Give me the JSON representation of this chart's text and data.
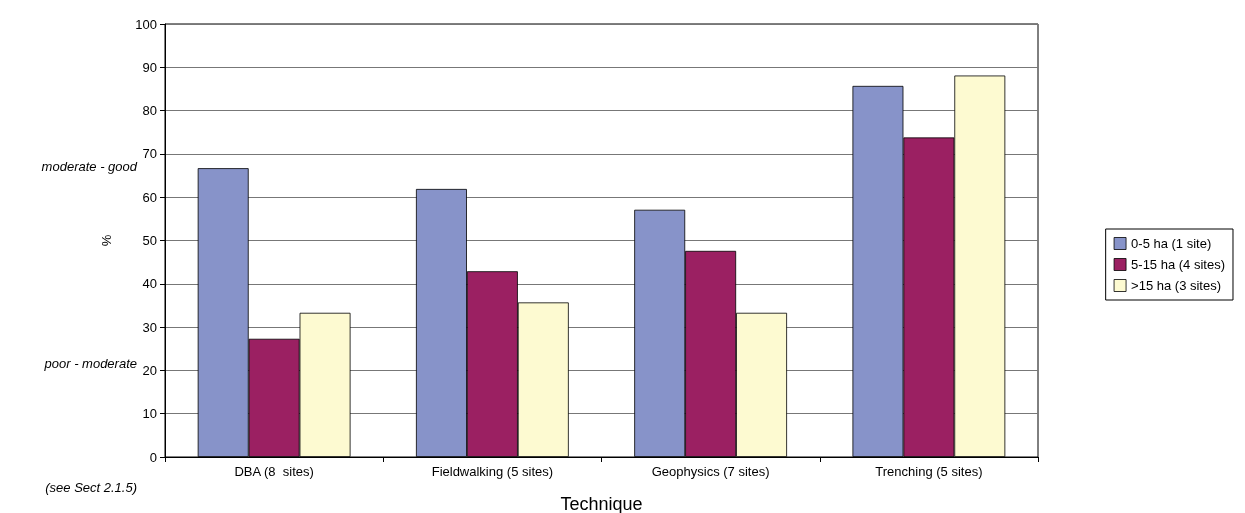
{
  "chart_data": {
    "type": "bar",
    "xlabel": "Technique",
    "ylabel": "%",
    "categories": [
      "DBA (8  sites)",
      "Fieldwalking (5 sites)",
      "Geophysics (7 sites)",
      "Trenching (5 sites)"
    ],
    "series": [
      {
        "name": "0-5 ha (1 site)",
        "color": "#8793c9",
        "values": [
          66.7,
          61.9,
          57.1,
          85.7
        ]
      },
      {
        "name": "5-15 ha (4 sites)",
        "color": "#9b2062",
        "values": [
          27.3,
          42.9,
          47.6,
          73.8
        ]
      },
      {
        "name": ">15 ha (3 sites)",
        "color": "#fdfad1",
        "values": [
          33.3,
          35.7,
          33.3,
          88.1
        ]
      }
    ],
    "ylim": [
      0,
      100
    ],
    "yticks": [
      0,
      10,
      20,
      30,
      40,
      50,
      60,
      70,
      80,
      90,
      100
    ],
    "grid": "y",
    "legend": "right",
    "annotations": [
      "moderate - good",
      "poor - moderate",
      "(see Sect 2.1.5)"
    ]
  }
}
